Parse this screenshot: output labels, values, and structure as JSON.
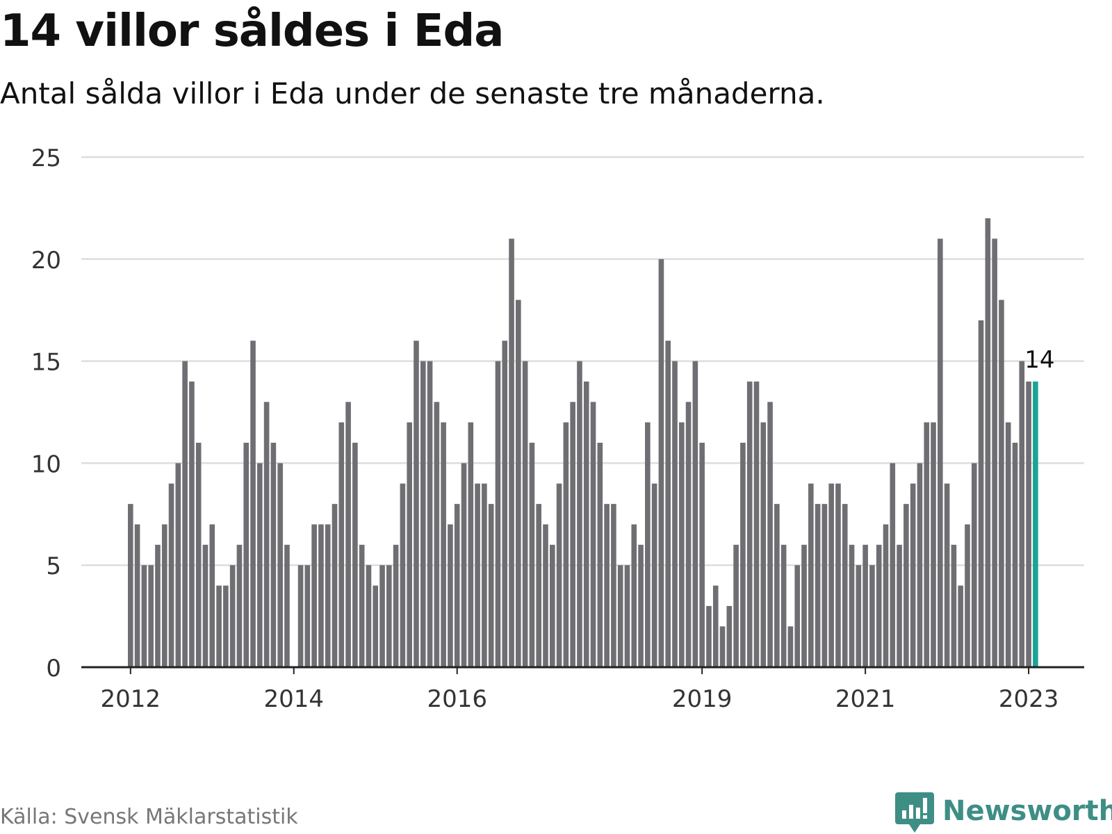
{
  "title": "14 villor såldes i Eda",
  "subtitle": "Antal sålda villor i Eda under de senaste tre månaderna.",
  "source": "Källa: Svensk Mäklarstatistik",
  "brand": "Newsworthy",
  "colors": {
    "bar": "#6e6e73",
    "highlight": "#1aa396",
    "grid": "#dddddd",
    "axis": "#222222",
    "brand": "#3e8e86"
  },
  "chart_data": {
    "type": "bar",
    "title": "14 villor såldes i Eda",
    "subtitle": "Antal sålda villor i Eda under de senaste tre månaderna.",
    "ylim": [
      0,
      25
    ],
    "yticks": [
      0,
      5,
      10,
      15,
      20,
      25
    ],
    "xticks": [
      {
        "label": "2012",
        "index": 0
      },
      {
        "label": "2014",
        "index": 24
      },
      {
        "label": "2016",
        "index": 48
      },
      {
        "label": "2019",
        "index": 84
      },
      {
        "label": "2021",
        "index": 108
      },
      {
        "label": "2023",
        "index": 132
      }
    ],
    "start": "2012-01",
    "frequency": "monthly",
    "values": [
      8,
      7,
      5,
      5,
      6,
      7,
      9,
      10,
      15,
      14,
      11,
      6,
      7,
      4,
      4,
      5,
      6,
      11,
      16,
      10,
      13,
      11,
      10,
      6,
      0,
      5,
      5,
      7,
      7,
      7,
      8,
      12,
      13,
      11,
      6,
      5,
      4,
      5,
      5,
      6,
      9,
      12,
      16,
      15,
      15,
      13,
      12,
      7,
      8,
      10,
      12,
      9,
      9,
      8,
      15,
      16,
      21,
      18,
      15,
      11,
      8,
      7,
      6,
      9,
      12,
      13,
      15,
      14,
      13,
      11,
      8,
      8,
      5,
      5,
      7,
      6,
      12,
      9,
      20,
      16,
      15,
      12,
      13,
      15,
      11,
      3,
      4,
      2,
      3,
      6,
      11,
      14,
      14,
      12,
      13,
      8,
      6,
      2,
      5,
      6,
      9,
      8,
      8,
      9,
      9,
      8,
      6,
      5,
      6,
      5,
      6,
      7,
      10,
      6,
      8,
      9,
      10,
      12,
      12,
      21,
      9,
      6,
      4,
      7,
      10,
      17,
      22,
      21,
      18,
      12,
      11,
      15,
      14,
      14
    ],
    "highlight_index": 133,
    "highlight_label": "14",
    "grid": true,
    "legend": "none"
  }
}
